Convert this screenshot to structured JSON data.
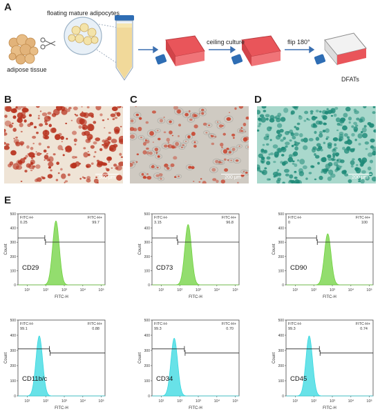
{
  "panels": {
    "a": "A",
    "b": "B",
    "c": "C",
    "d": "D",
    "e": "E"
  },
  "schematic": {
    "floating_label": "floating mature adipocytes",
    "tissue_label": "adipose tissue",
    "ceiling_label": "ceiling culture",
    "flip_label": "flip 180°",
    "dfat_label": "DFATs"
  },
  "micrographs": [
    {
      "scale": "500 μm",
      "stain_color": "#b8321e",
      "bg": "#efe4d6"
    },
    {
      "scale": "200 μm",
      "stain_color": "#c8442e",
      "bg": "#cfcac2"
    },
    {
      "scale": "200 μm",
      "stain_color": "#1f8a78",
      "bg": "#a9d8cc"
    }
  ],
  "flow": {
    "xlabel": "FITC-H",
    "ylabel": "Count",
    "neg_gate": "FITC-H-",
    "pos_gate": "FITC-H+",
    "xticks": [
      "10¹",
      "10²",
      "10³",
      "10⁴",
      "10⁵"
    ],
    "yticks": [
      "0",
      "100",
      "200",
      "300",
      "400",
      "500"
    ],
    "green": "#6fd13e",
    "cyan": "#36d8e0"
  },
  "chart_data": [
    {
      "type": "area",
      "marker": "CD29",
      "neg_pct": "0.25",
      "pos_pct": "99.7",
      "peak_log": 2.55,
      "peak_count": 450,
      "series_color": "green"
    },
    {
      "type": "area",
      "marker": "CD73",
      "neg_pct": "3.15",
      "pos_pct": "96.8",
      "peak_log": 2.45,
      "peak_count": 425,
      "series_color": "green"
    },
    {
      "type": "area",
      "marker": "CD90",
      "neg_pct": "0",
      "pos_pct": "100",
      "peak_log": 2.75,
      "peak_count": 360,
      "series_color": "green"
    },
    {
      "type": "area",
      "marker": "CD11b/c",
      "neg_pct": "99.1",
      "pos_pct": "0.88",
      "peak_log": 1.65,
      "peak_count": 395,
      "series_color": "cyan"
    },
    {
      "type": "area",
      "marker": "CD34",
      "neg_pct": "99.3",
      "pos_pct": "0.70",
      "peak_log": 1.7,
      "peak_count": 380,
      "series_color": "cyan"
    },
    {
      "type": "area",
      "marker": "CD45",
      "neg_pct": "99.3",
      "pos_pct": "0.74",
      "peak_log": 1.75,
      "peak_count": 395,
      "series_color": "cyan"
    }
  ]
}
